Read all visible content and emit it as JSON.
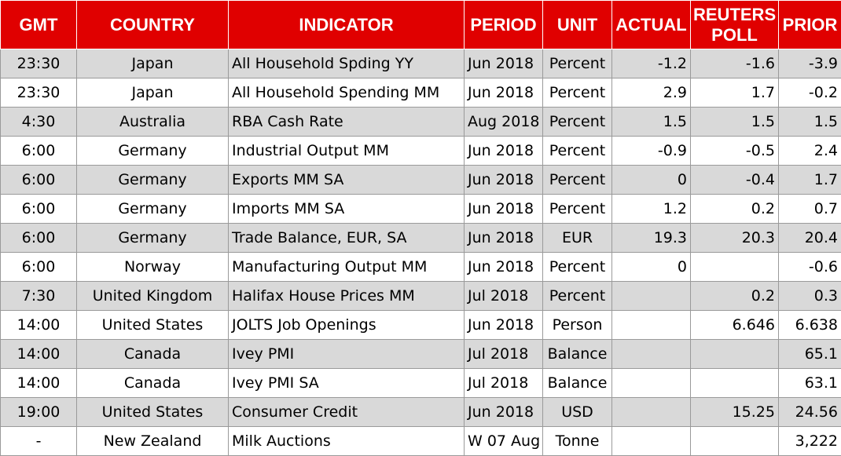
{
  "table": {
    "columns": [
      "GMT",
      "COUNTRY",
      "INDICATOR",
      "PERIOD",
      "UNIT",
      "ACTUAL",
      "REUTERS POLL",
      "PRIOR"
    ],
    "rows": [
      [
        "23:30",
        "Japan",
        "All Household Spding YY",
        "Jun 2018",
        "Percent",
        "-1.2",
        "-1.6",
        "-3.9"
      ],
      [
        "23:30",
        "Japan",
        "All Household Spending MM",
        "Jun 2018",
        "Percent",
        "2.9",
        "1.7",
        "-0.2"
      ],
      [
        "4:30",
        "Australia",
        "RBA Cash Rate",
        "Aug 2018",
        "Percent",
        "1.5",
        "1.5",
        "1.5"
      ],
      [
        "6:00",
        "Germany",
        "Industrial Output MM",
        "Jun 2018",
        "Percent",
        "-0.9",
        "-0.5",
        "2.4"
      ],
      [
        "6:00",
        "Germany",
        "Exports MM SA",
        "Jun 2018",
        "Percent",
        "0",
        "-0.4",
        "1.7"
      ],
      [
        "6:00",
        "Germany",
        "Imports MM SA",
        "Jun 2018",
        "Percent",
        "1.2",
        "0.2",
        "0.7"
      ],
      [
        "6:00",
        "Germany",
        "Trade Balance, EUR, SA",
        "Jun 2018",
        "EUR",
        "19.3",
        "20.3",
        "20.4"
      ],
      [
        "6:00",
        "Norway",
        "Manufacturing Output MM",
        "Jun 2018",
        "Percent",
        "0",
        null,
        "-0.6"
      ],
      [
        "7:30",
        "United Kingdom",
        "Halifax House Prices MM",
        "Jul 2018",
        "Percent",
        null,
        "0.2",
        "0.3"
      ],
      [
        "14:00",
        "United States",
        "JOLTS Job Openings",
        "Jun 2018",
        "Person",
        null,
        "6.646",
        "6.638"
      ],
      [
        "14:00",
        "Canada",
        "Ivey PMI",
        "Jul 2018",
        "Balance",
        null,
        null,
        "65.1"
      ],
      [
        "14:00",
        "Canada",
        "Ivey PMI SA",
        "Jul 2018",
        "Balance",
        null,
        null,
        "63.1"
      ],
      [
        "19:00",
        "United States",
        "Consumer Credit",
        "Jun 2018",
        "USD",
        null,
        "15.25",
        "24.56"
      ],
      [
        "-",
        "New Zealand",
        "Milk Auctions",
        "W 07 Aug",
        "Tonne",
        null,
        null,
        "3,222"
      ]
    ]
  }
}
